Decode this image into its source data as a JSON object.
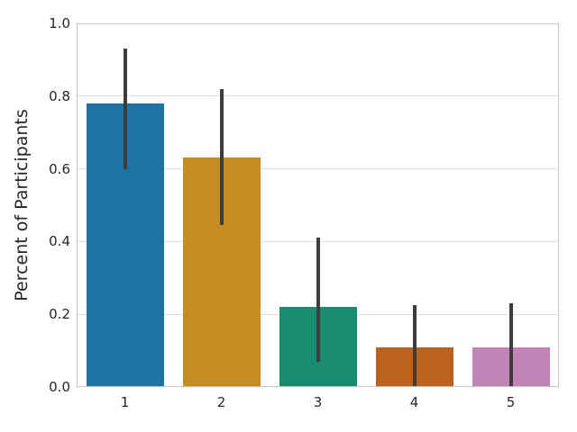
{
  "figure": {
    "background": "#ffffff",
    "text_color": "#262626",
    "grid_color": "#dcdcdc",
    "spine_color": "#c6c6c6"
  },
  "chart_data": {
    "type": "bar",
    "title": "",
    "xlabel": "",
    "ylabel": "Percent of Participants",
    "categories": [
      "1",
      "2",
      "3",
      "4",
      "5"
    ],
    "values": [
      0.78,
      0.63,
      0.22,
      0.11,
      0.11
    ],
    "error_low": [
      0.6,
      0.445,
      0.07,
      0.0,
      0.0
    ],
    "error_high": [
      0.93,
      0.82,
      0.41,
      0.225,
      0.23
    ],
    "bar_colors": [
      "#1d73a3",
      "#c68b21",
      "#178c6e",
      "#ba621e",
      "#c283b7"
    ],
    "errorbar_color": "#3d3d3d",
    "ylim": [
      0.0,
      1.0
    ],
    "yticks": [
      "0.0",
      "0.2",
      "0.4",
      "0.6",
      "0.8",
      "1.0"
    ],
    "grid": "horizontal",
    "legend": null
  }
}
